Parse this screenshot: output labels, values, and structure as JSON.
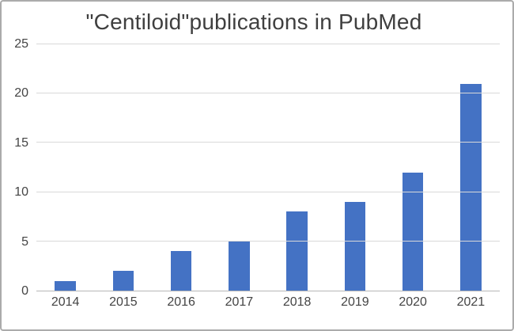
{
  "chart_data": {
    "type": "bar",
    "title": "\"Centiloid\"publications in PubMed",
    "categories": [
      "2014",
      "2015",
      "2016",
      "2017",
      "2018",
      "2019",
      "2020",
      "2021"
    ],
    "values": [
      1,
      2,
      4,
      5,
      8,
      9,
      12,
      21
    ],
    "xlabel": "",
    "ylabel": "",
    "ylim": [
      0,
      25
    ],
    "yticks": [
      0,
      5,
      10,
      15,
      20,
      25
    ],
    "grid": true,
    "legend": false,
    "colors": {
      "bar": "#4472C4",
      "gridline": "#d9d9d9",
      "axis": "#b7b7b7",
      "title": "#3f3f3f",
      "tick": "#444444",
      "border": "#ababab"
    }
  }
}
